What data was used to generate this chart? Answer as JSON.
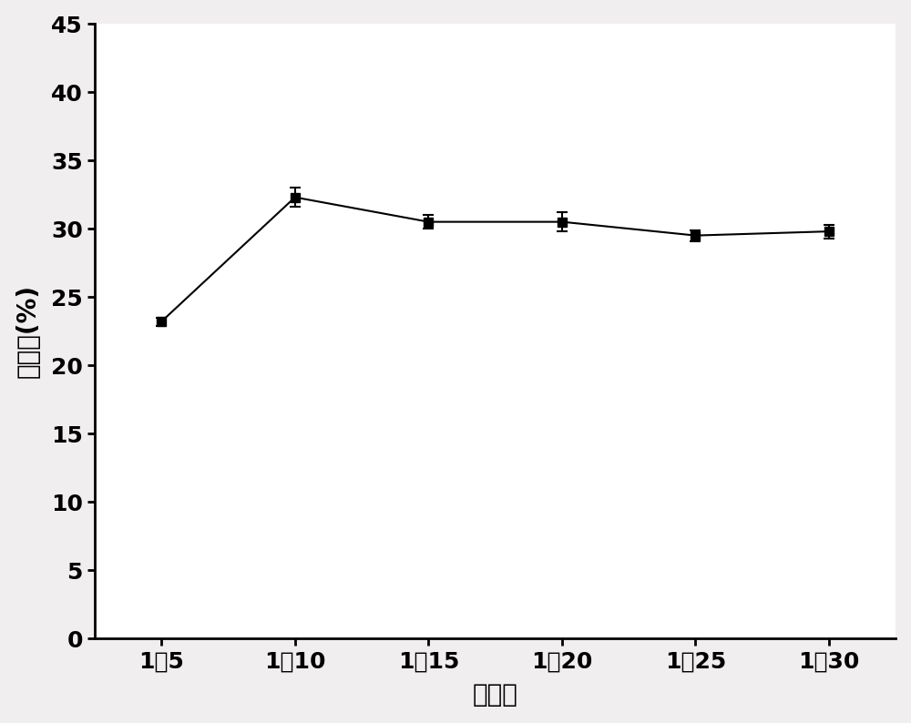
{
  "x_positions": [
    1,
    2,
    3,
    4,
    5,
    6
  ],
  "x_labels": [
    "1：5",
    "1：10",
    "1：15",
    "1：20",
    "1：25",
    "1：30"
  ],
  "y_values": [
    23.2,
    32.3,
    30.5,
    30.5,
    29.5,
    29.8
  ],
  "y_errors": [
    0.3,
    0.7,
    0.5,
    0.7,
    0.4,
    0.5
  ],
  "xlabel": "料液比",
  "ylabel": "提取率(%)",
  "ylim": [
    0,
    45
  ],
  "yticks": [
    0,
    5,
    10,
    15,
    20,
    25,
    30,
    35,
    40,
    45
  ],
  "line_color": "#000000",
  "marker": "s",
  "marker_size": 7,
  "marker_facecolor": "#000000",
  "marker_edgecolor": "#000000",
  "line_width": 1.5,
  "background_color": "#f0eeee",
  "axes_background": "#ffffff",
  "xlabel_fontsize": 20,
  "ylabel_fontsize": 20,
  "tick_fontsize": 18,
  "capsize": 4,
  "elinewidth": 1.5,
  "capthick": 1.5
}
